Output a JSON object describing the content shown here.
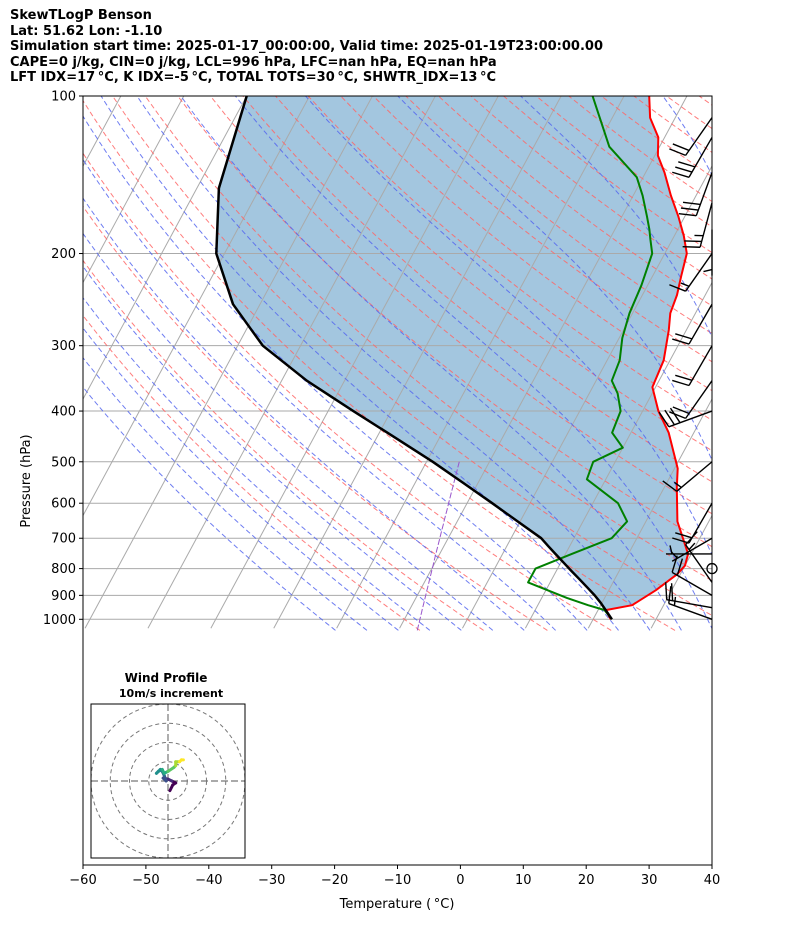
{
  "header": {
    "line1": "SkewTLogP Benson",
    "line2": "Lat: 51.62   Lon: -1.10",
    "line3": "Simulation start time: 2025-01-17_00:00:00, Valid time: 2025-01-19T23:00:00.00",
    "line4": "CAPE=0 j/kg, CIN=0 j/kg, LCL=996 hPa, LFC=nan hPa, EQ=nan hPa",
    "line5": "LFT IDX=17 °C, K IDX=-5 °C, TOTAL TOTS=30 °C, SHWTR_IDX=13 °C"
  },
  "colors": {
    "temperature": "#ff0000",
    "dewpoint": "#008000",
    "parcel": "#000000",
    "cape_fill": "#a3c6df",
    "dry_adiabats": "#ff6666",
    "moist_adiabats": "#5566ee",
    "mixing_ratio": "#9955cc",
    "isotherms": "#aaaaaa"
  },
  "chart_data": [
    {
      "type": "line",
      "subtype": "skew-T log-P",
      "xlabel": "Temperature ( °C)",
      "ylabel": "Pressure (hPa)",
      "xlim": [
        -60,
        40
      ],
      "ylim": [
        1040,
        100
      ],
      "y_scale": "log",
      "grid": true,
      "x_ticks": [
        "−60",
        "−50",
        "−40",
        "−30",
        "−20",
        "−10",
        "0",
        "10",
        "20",
        "30",
        "40"
      ],
      "y_ticks": [
        "100",
        "200",
        "300",
        "400",
        "500",
        "600",
        "700",
        "800",
        "900",
        "1000"
      ],
      "series": [
        {
          "key": "temperature",
          "points": [
            [
              2.8,
              1000
            ],
            [
              2,
              980
            ],
            [
              1.3,
              960
            ],
            [
              5,
              940
            ],
            [
              7.5,
              880
            ],
            [
              9.5,
              820
            ],
            [
              10,
              790
            ],
            [
              9.5,
              750
            ],
            [
              5,
              650
            ],
            [
              2,
              560
            ],
            [
              0.5,
              515
            ],
            [
              -4,
              440
            ],
            [
              -7.5,
              400
            ],
            [
              -10.5,
              360
            ],
            [
              -11,
              320
            ],
            [
              -12.8,
              280
            ],
            [
              -14,
              260
            ],
            [
              -14.5,
              240
            ],
            [
              -15.5,
              220
            ],
            [
              -16.5,
              200
            ],
            [
              -18.5,
              185
            ],
            [
              -21,
              170
            ],
            [
              -24,
              155
            ],
            [
              -27,
              140
            ],
            [
              -29.5,
              130
            ],
            [
              -31,
              120
            ],
            [
              -34,
              110
            ],
            [
              -36,
              100
            ]
          ]
        },
        {
          "key": "dewpoint",
          "points": [
            [
              3,
              1000
            ],
            [
              1,
              960
            ],
            [
              -2,
              940
            ],
            [
              -6,
              910
            ],
            [
              -13.5,
              850
            ],
            [
              -13.5,
              800
            ],
            [
              -9,
              750
            ],
            [
              -4,
              700
            ],
            [
              -3,
              650
            ],
            [
              -6,
              600
            ],
            [
              -13,
              540
            ],
            [
              -13.5,
              500
            ],
            [
              -10,
              470
            ],
            [
              -13,
              440
            ],
            [
              -13.5,
              400
            ],
            [
              -15.5,
              370
            ],
            [
              -17.5,
              350
            ],
            [
              -18,
              320
            ],
            [
              -19.5,
              290
            ],
            [
              -20.5,
              260
            ],
            [
              -21,
              230
            ],
            [
              -22,
              200
            ],
            [
              -23.5,
              188
            ],
            [
              -24.5,
              180
            ],
            [
              -26,
              170
            ],
            [
              -28.5,
              155
            ],
            [
              -31,
              143
            ],
            [
              -38,
              125
            ],
            [
              -45,
              100
            ]
          ]
        },
        {
          "key": "parcel",
          "points": [
            [
              3,
              1000
            ],
            [
              1.2,
              960
            ],
            [
              -0.2,
              930
            ],
            [
              -1.8,
              900
            ],
            [
              -3.6,
              870
            ],
            [
              -5.5,
              840
            ],
            [
              -7.5,
              810
            ],
            [
              -9.5,
              780
            ],
            [
              -11.6,
              750
            ],
            [
              -13.4,
              725
            ],
            [
              -15.2,
              700
            ],
            [
              -20.4,
              650
            ],
            [
              -26,
              600
            ],
            [
              -32.2,
              550
            ],
            [
              -39,
              500
            ],
            [
              -47,
              450
            ],
            [
              -56,
              400
            ],
            [
              -66,
              350
            ],
            [
              -76,
              300
            ],
            [
              -84.3,
              250
            ],
            [
              -91.3,
              200
            ],
            [
              -96.5,
              150
            ],
            [
              -100,
              100
            ]
          ]
        }
      ],
      "cape_cin_fill": "between parcel and temperature profiles"
    },
    {
      "type": "line",
      "subtype": "hodograph",
      "title": "Wind Profile",
      "subtitle": "10m/s increment",
      "rings_ms": [
        10,
        20,
        30,
        40
      ],
      "axis_limit_ms": 40,
      "trace_uv_ms": [
        [
          1,
          -5
        ],
        [
          2.5,
          -2
        ],
        [
          4,
          -1
        ],
        [
          2,
          0
        ],
        [
          0,
          1
        ],
        [
          -2.5,
          1.5
        ],
        [
          -1,
          0
        ],
        [
          -2,
          3
        ],
        [
          -3,
          5
        ],
        [
          -4,
          6
        ],
        [
          -6,
          4
        ],
        [
          -5,
          5
        ],
        [
          -3,
          6
        ],
        [
          -2,
          4
        ],
        [
          0,
          5
        ],
        [
          3,
          7
        ],
        [
          4,
          8
        ],
        [
          4,
          10
        ],
        [
          6,
          10
        ],
        [
          7,
          11
        ],
        [
          8,
          11
        ]
      ]
    }
  ],
  "wind_barbs": [
    {
      "p": 1000,
      "dir": 290,
      "kt": 15,
      "calm": false
    },
    {
      "p": 950,
      "dir": 280,
      "kt": 20,
      "calm": false
    },
    {
      "p": 900,
      "dir": 300,
      "kt": 20,
      "calm": false
    },
    {
      "p": 850,
      "dir": 325,
      "kt": 15,
      "calm": false
    },
    {
      "p": 800,
      "dir": 0,
      "kt": 0,
      "calm": true
    },
    {
      "p": 750,
      "dir": 270,
      "kt": 5,
      "calm": false
    },
    {
      "p": 700,
      "dir": 240,
      "kt": 5,
      "calm": false
    },
    {
      "p": 600,
      "dir": 210,
      "kt": 20,
      "calm": false
    },
    {
      "p": 500,
      "dir": 230,
      "kt": 15,
      "calm": false
    },
    {
      "p": 400,
      "dir": 250,
      "kt": 30,
      "calm": false
    },
    {
      "p": 350,
      "dir": 215,
      "kt": 20,
      "calm": false
    },
    {
      "p": 300,
      "dir": 210,
      "kt": 20,
      "calm": false
    },
    {
      "p": 250,
      "dir": 210,
      "kt": 20,
      "calm": false
    },
    {
      "p": 200,
      "dir": 215,
      "kt": 15,
      "calm": false
    },
    {
      "p": 180,
      "dir": 180,
      "kt": 5,
      "calm": false
    },
    {
      "p": 160,
      "dir": 195,
      "kt": 25,
      "calm": false
    },
    {
      "p": 140,
      "dir": 200,
      "kt": 30,
      "calm": false
    },
    {
      "p": 120,
      "dir": 210,
      "kt": 30,
      "calm": false
    },
    {
      "p": 110,
      "dir": 215,
      "kt": 20,
      "calm": false
    }
  ]
}
